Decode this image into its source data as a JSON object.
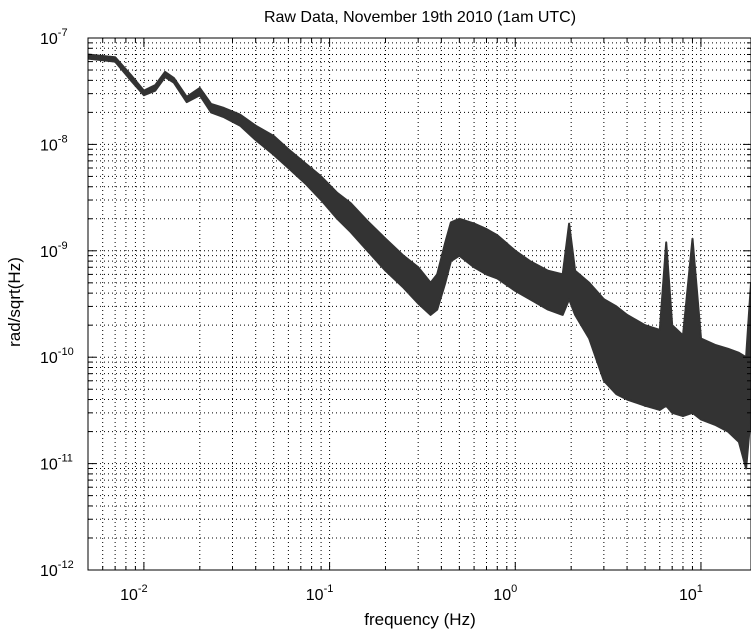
{
  "chart_data": {
    "type": "line",
    "title": "Raw Data, November 19th 2010 (1am UTC)",
    "xlabel": "frequency (Hz)",
    "ylabel": "rad/sqrt(Hz)",
    "xscale": "log",
    "yscale": "log",
    "xlim": [
      0.005,
      18.6
    ],
    "ylim": [
      1e-12,
      1e-07
    ],
    "grid": true,
    "x_ticks": [
      {
        "value": 0.01,
        "base": "10",
        "exp": "-2"
      },
      {
        "value": 0.1,
        "base": "10",
        "exp": "-1"
      },
      {
        "value": 1,
        "base": "10",
        "exp": "0"
      },
      {
        "value": 10,
        "base": "10",
        "exp": "1"
      }
    ],
    "y_ticks": [
      {
        "value": 1e-12,
        "base": "10",
        "exp": "-12"
      },
      {
        "value": 1e-11,
        "base": "10",
        "exp": "-11"
      },
      {
        "value": 1e-10,
        "base": "10",
        "exp": "-10"
      },
      {
        "value": 1e-09,
        "base": "10",
        "exp": "-9"
      },
      {
        "value": 1e-08,
        "base": "10",
        "exp": "-8"
      },
      {
        "value": 1e-07,
        "base": "10",
        "exp": "-7"
      }
    ],
    "line_color": "#333333",
    "series": [
      {
        "upper": [
          [
            0.005,
            7e-08
          ],
          [
            0.007,
            6.6e-08
          ],
          [
            0.0085,
            4.5e-08
          ],
          [
            0.01,
            3.2e-08
          ],
          [
            0.0115,
            3.6e-08
          ],
          [
            0.013,
            4.8e-08
          ],
          [
            0.0145,
            4.2e-08
          ],
          [
            0.017,
            2.8e-08
          ],
          [
            0.02,
            3.4e-08
          ],
          [
            0.023,
            2.4e-08
          ],
          [
            0.027,
            2.2e-08
          ],
          [
            0.033,
            1.9e-08
          ],
          [
            0.04,
            1.5e-08
          ],
          [
            0.05,
            1.2e-08
          ],
          [
            0.06,
            9e-09
          ],
          [
            0.075,
            6.5e-09
          ],
          [
            0.09,
            5e-09
          ],
          [
            0.11,
            3.5e-09
          ],
          [
            0.13,
            2.8e-09
          ],
          [
            0.16,
            1.9e-09
          ],
          [
            0.2,
            1.3e-09
          ],
          [
            0.25,
            9e-10
          ],
          [
            0.3,
            7e-10
          ],
          [
            0.35,
            5e-10
          ],
          [
            0.38,
            6e-10
          ],
          [
            0.42,
            1.2e-09
          ],
          [
            0.45,
            1.85e-09
          ],
          [
            0.5,
            2e-09
          ],
          [
            0.6,
            1.8e-09
          ],
          [
            0.7,
            1.6e-09
          ],
          [
            0.8,
            1.4e-09
          ],
          [
            1.0,
            1e-09
          ],
          [
            1.2,
            8e-10
          ],
          [
            1.5,
            6.5e-10
          ],
          [
            1.8,
            6e-10
          ],
          [
            1.95,
            1.8e-09
          ],
          [
            2.1,
            6.5e-10
          ],
          [
            2.5,
            5e-10
          ],
          [
            3.0,
            3.5e-10
          ],
          [
            3.5,
            3e-10
          ],
          [
            4.0,
            2.5e-10
          ],
          [
            5.0,
            2e-10
          ],
          [
            6.0,
            1.8e-10
          ],
          [
            6.5,
            1.2e-09
          ],
          [
            7.0,
            2e-10
          ],
          [
            8.0,
            1.6e-10
          ],
          [
            9.0,
            1.3e-09
          ],
          [
            10.0,
            1.5e-10
          ],
          [
            12.0,
            1.3e-10
          ],
          [
            14.0,
            1.2e-10
          ],
          [
            16.0,
            1.1e-10
          ],
          [
            17.5,
            1e-10
          ],
          [
            18.6,
            5e-10
          ]
        ],
        "lower": [
          [
            0.005,
            6.4e-08
          ],
          [
            0.007,
            6e-08
          ],
          [
            0.0085,
            4e-08
          ],
          [
            0.01,
            2.9e-08
          ],
          [
            0.0115,
            3.2e-08
          ],
          [
            0.013,
            4.3e-08
          ],
          [
            0.0145,
            3.8e-08
          ],
          [
            0.017,
            2.5e-08
          ],
          [
            0.02,
            2.9e-08
          ],
          [
            0.023,
            2e-08
          ],
          [
            0.027,
            1.8e-08
          ],
          [
            0.033,
            1.5e-08
          ],
          [
            0.04,
            1.1e-08
          ],
          [
            0.05,
            8e-09
          ],
          [
            0.06,
            6e-09
          ],
          [
            0.075,
            4.2e-09
          ],
          [
            0.09,
            3e-09
          ],
          [
            0.11,
            2e-09
          ],
          [
            0.13,
            1.5e-09
          ],
          [
            0.16,
            1e-09
          ],
          [
            0.2,
            6.5e-10
          ],
          [
            0.25,
            4.5e-10
          ],
          [
            0.3,
            3.2e-10
          ],
          [
            0.35,
            2.5e-10
          ],
          [
            0.38,
            2.8e-10
          ],
          [
            0.42,
            5e-10
          ],
          [
            0.45,
            8e-10
          ],
          [
            0.5,
            9e-10
          ],
          [
            0.6,
            7e-10
          ],
          [
            0.7,
            6e-10
          ],
          [
            0.8,
            5.5e-10
          ],
          [
            1.0,
            4.2e-10
          ],
          [
            1.2,
            3.5e-10
          ],
          [
            1.5,
            2.8e-10
          ],
          [
            1.8,
            2.5e-10
          ],
          [
            1.95,
            3.5e-10
          ],
          [
            2.1,
            2.5e-10
          ],
          [
            2.5,
            1.5e-10
          ],
          [
            3.0,
            6e-11
          ],
          [
            3.5,
            4.5e-11
          ],
          [
            4.0,
            4e-11
          ],
          [
            5.0,
            3.5e-11
          ],
          [
            6.0,
            3.2e-11
          ],
          [
            6.5,
            3.5e-11
          ],
          [
            7.0,
            3e-11
          ],
          [
            8.0,
            2.8e-11
          ],
          [
            9.0,
            3e-11
          ],
          [
            10.0,
            2.6e-11
          ],
          [
            12.0,
            2.3e-11
          ],
          [
            14.0,
            2e-11
          ],
          [
            16.0,
            1.6e-11
          ],
          [
            17.5,
            9e-12
          ],
          [
            18.6,
            3e-11
          ]
        ]
      }
    ]
  }
}
